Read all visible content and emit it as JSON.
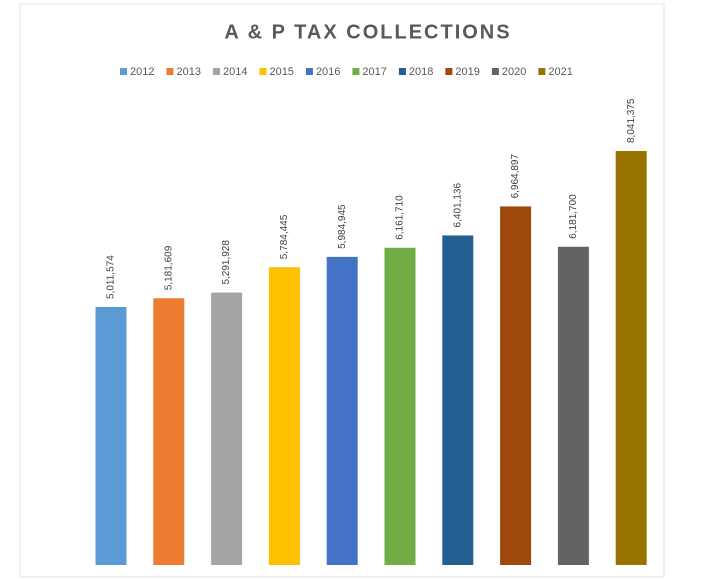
{
  "chart_data": {
    "type": "bar",
    "title": "A & P TAX COLLECTIONS",
    "categories": [
      "2012",
      "2013",
      "2014",
      "2015",
      "2016",
      "2017",
      "2018",
      "2019",
      "2020",
      "2021"
    ],
    "values": [
      5011574,
      5181609,
      5291928,
      5784445,
      5984945,
      6161710,
      6401136,
      6964897,
      6181700,
      8041375
    ],
    "value_labels": [
      "5,011,574",
      "5,181,609",
      "5,291,928",
      "5,784,445",
      "5,984,945",
      "6,161,710",
      "6,401,136",
      "6,964,897",
      "6,181,700",
      "8,041,375"
    ],
    "colors": [
      "#5b9bd5",
      "#ed7d31",
      "#a5a5a5",
      "#ffc000",
      "#4472c4",
      "#70ad47",
      "#255e91",
      "#9e480e",
      "#636363",
      "#997300"
    ],
    "legend": "top"
  }
}
